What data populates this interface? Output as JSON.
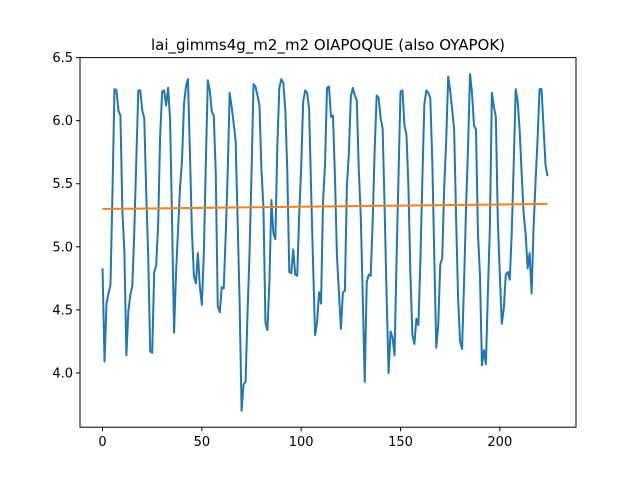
{
  "chart_data": {
    "type": "line",
    "title": "lai_gimms4g_m2_m2 OIAPOQUE (also OYAPOK)",
    "xlabel": "",
    "ylabel": "",
    "xlim": [
      -11.35,
      238.35
    ],
    "ylim": [
      3.57,
      6.5
    ],
    "xticks": [
      0,
      50,
      100,
      150,
      200
    ],
    "yticks": [
      4.0,
      4.5,
      5.0,
      5.5,
      6.0,
      6.5
    ],
    "ytick_labels": [
      "4.0",
      "4.5",
      "5.0",
      "5.5",
      "6.0",
      "6.5"
    ],
    "grid": false,
    "legend": "none",
    "series": [
      {
        "color": "#1f77b4",
        "values": [
          4.83,
          4.09,
          4.55,
          4.63,
          4.7,
          5.43,
          6.25,
          6.24,
          6.08,
          6.04,
          5.28,
          4.96,
          4.14,
          4.49,
          4.62,
          4.69,
          5.13,
          5.69,
          6.24,
          6.24,
          6.08,
          6.02,
          5.42,
          4.92,
          4.17,
          4.16,
          4.8,
          4.85,
          5.18,
          5.88,
          6.23,
          6.24,
          6.12,
          6.26,
          6.01,
          5.2,
          4.32,
          4.79,
          5.13,
          5.47,
          5.68,
          6.13,
          6.27,
          6.33,
          5.74,
          5.12,
          4.77,
          4.71,
          4.95,
          4.68,
          4.54,
          4.95,
          5.67,
          6.32,
          6.24,
          6.07,
          6.04,
          5.58,
          4.53,
          4.48,
          4.68,
          4.67,
          5.09,
          5.59,
          6.22,
          6.11,
          5.98,
          5.84,
          5.21,
          4.56,
          3.7,
          3.91,
          3.93,
          4.48,
          4.95,
          5.58,
          6.29,
          6.27,
          6.2,
          6.12,
          5.61,
          5.31,
          4.4,
          4.34,
          4.72,
          5.37,
          5.11,
          5.06,
          5.81,
          6.26,
          6.33,
          6.3,
          6.09,
          5.61,
          4.8,
          4.79,
          4.98,
          4.78,
          4.77,
          5.25,
          5.63,
          6.15,
          6.24,
          6.22,
          6.09,
          5.45,
          4.86,
          4.3,
          4.4,
          4.64,
          4.55,
          5.36,
          5.65,
          6.26,
          6.27,
          6.03,
          6.04,
          5.56,
          4.93,
          4.64,
          4.35,
          4.64,
          4.65,
          5.48,
          5.74,
          6.19,
          6.26,
          6.2,
          6.16,
          5.61,
          5.24,
          4.6,
          3.93,
          4.72,
          4.78,
          4.77,
          5.2,
          5.77,
          6.2,
          6.18,
          6.02,
          5.94,
          5.31,
          4.61,
          4.0,
          4.33,
          4.28,
          4.14,
          4.89,
          5.56,
          6.23,
          6.24,
          5.96,
          5.89,
          5.47,
          4.77,
          4.3,
          4.23,
          4.43,
          4.38,
          4.88,
          5.53,
          6.13,
          6.24,
          6.22,
          6.18,
          5.68,
          4.93,
          4.2,
          4.38,
          4.86,
          4.91,
          5.47,
          5.84,
          6.35,
          6.24,
          6.09,
          5.93,
          5.22,
          4.59,
          4.25,
          4.19,
          4.72,
          5.31,
          5.79,
          6.37,
          6.22,
          5.96,
          5.93,
          5.1,
          4.78,
          4.06,
          4.18,
          4.07,
          4.64,
          5.16,
          6.22,
          6.11,
          6.03,
          5.2,
          4.78,
          4.39,
          4.51,
          4.78,
          4.8,
          4.74,
          5.11,
          5.66,
          6.25,
          6.15,
          5.92,
          5.58,
          5.26,
          5.1,
          4.83,
          4.95,
          4.63,
          5.16,
          5.52,
          5.85,
          6.25,
          6.25,
          5.95,
          5.65,
          5.56
        ]
      },
      {
        "color": "#ff7f0e",
        "values_start": 5.3,
        "values_end": 5.34
      }
    ]
  }
}
